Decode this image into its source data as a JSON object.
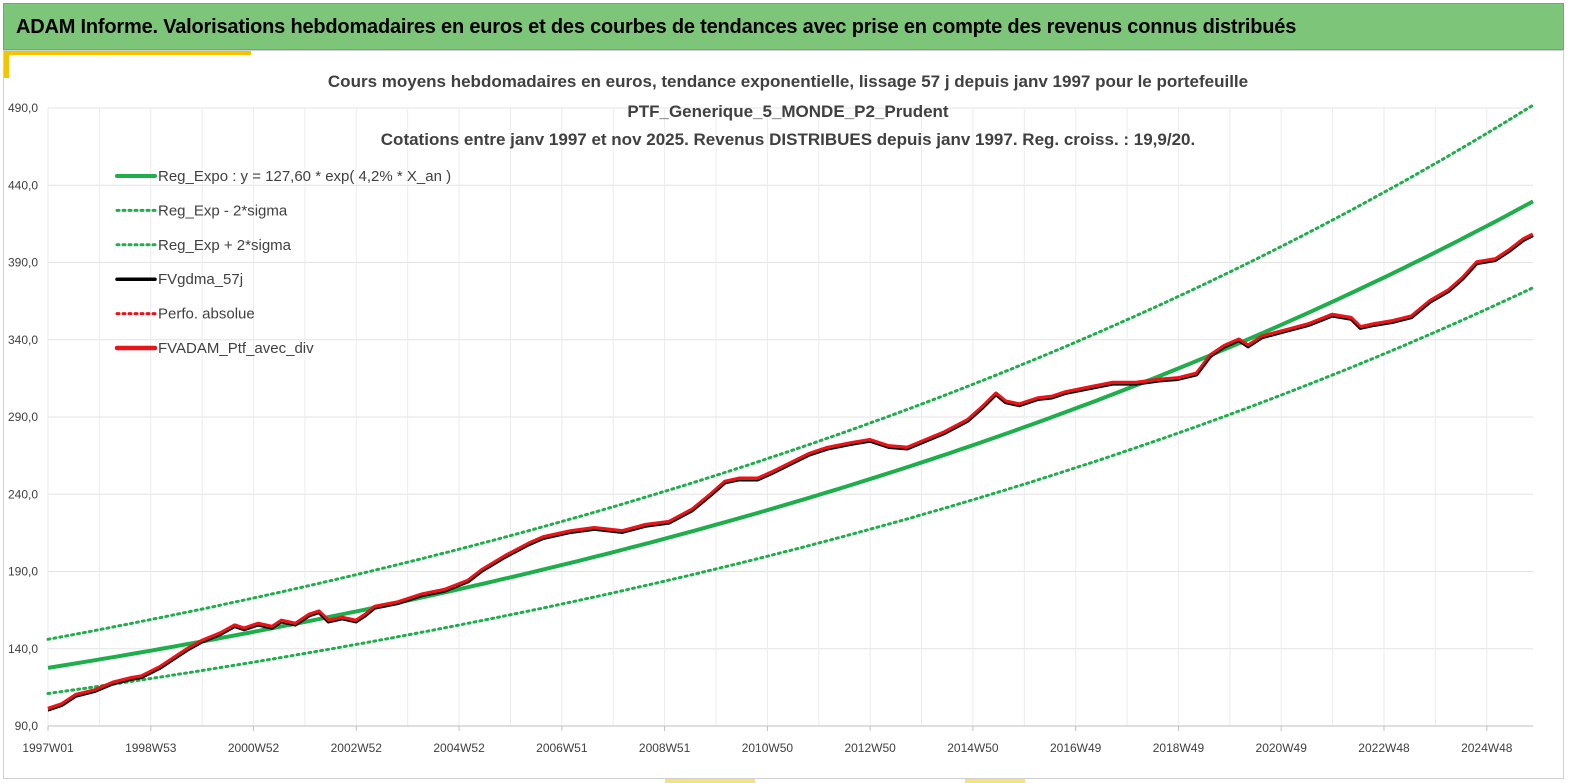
{
  "header": {
    "title": "ADAM Informe. Valorisations hebdomadaires en euros et des courbes de tendances avec prise en compte des revenus connus distribués"
  },
  "colors": {
    "banner": "#7dc579",
    "accent": "#f5c400",
    "reg": "#1fae4c",
    "fv": "#000000",
    "perf": "#e8141a",
    "grid": "#e3e3e3"
  },
  "chart_data": {
    "type": "line",
    "title_lines": [
      "Cours moyens hebdomadaires  en euros, tendance exponentielle, lissage 57 j depuis janv 1997 pour le portefeuille",
      "PTF_Generique_5_MONDE_P2_Prudent",
      "Cotations  entre janv 1997 et nov 2025. Revenus DISTRIBUES depuis janv 1997. Reg. croiss. : 19,9/20."
    ],
    "ylim": [
      90,
      490
    ],
    "y_ticks": [
      "490,0",
      "440,0",
      "390,0",
      "340,0",
      "290,0",
      "240,0",
      "190,0",
      "140,0",
      "90,0"
    ],
    "x_range_years": [
      1997.0,
      2025.9
    ],
    "x_ticks": [
      {
        "label": "1997W01",
        "year": 1997.0
      },
      {
        "label": "1998W53",
        "year": 1999.0
      },
      {
        "label": "2000W52",
        "year": 2001.0
      },
      {
        "label": "2002W52",
        "year": 2003.0
      },
      {
        "label": "2004W52",
        "year": 2005.0
      },
      {
        "label": "2006W51",
        "year": 2007.0
      },
      {
        "label": "2008W51",
        "year": 2009.0
      },
      {
        "label": "2010W50",
        "year": 2011.0
      },
      {
        "label": "2012W50",
        "year": 2013.0
      },
      {
        "label": "2014W50",
        "year": 2015.0
      },
      {
        "label": "2016W49",
        "year": 2017.0
      },
      {
        "label": "2018W49",
        "year": 2019.0
      },
      {
        "label": "2020W49",
        "year": 2021.0
      },
      {
        "label": "2022W48",
        "year": 2023.0
      },
      {
        "label": "2024W48",
        "year": 2025.0
      }
    ],
    "regression": {
      "a": 127.6,
      "rate": 0.042,
      "sigma_mult": [
        0.87,
        1.145
      ]
    },
    "legend": [
      {
        "key": "reg",
        "label": "Reg_Expo : y = 127,60 * exp( 4,2% *  X_an )",
        "style": "solid-green"
      },
      {
        "key": "low",
        "label": "Reg_Exp - 2*sigma",
        "style": "dotted-green"
      },
      {
        "key": "high",
        "label": "Reg_Exp + 2*sigma",
        "style": "dotted-green"
      },
      {
        "key": "fv",
        "label": "FVgdma_57j",
        "style": "solid-black"
      },
      {
        "key": "perf",
        "label": "Perfo. absolue",
        "style": "dotted-red"
      },
      {
        "key": "ptf",
        "label": "FVADAM_Ptf_avec_div",
        "style": "solid-red"
      }
    ],
    "series_anchors": [
      [
        1997.0,
        101
      ],
      [
        1997.3,
        104
      ],
      [
        1997.6,
        110
      ],
      [
        1998.0,
        113
      ],
      [
        1998.4,
        118
      ],
      [
        1998.8,
        121
      ],
      [
        1999.0,
        122
      ],
      [
        1999.4,
        128
      ],
      [
        1999.8,
        136
      ],
      [
        2000.0,
        140
      ],
      [
        2000.3,
        145
      ],
      [
        2000.7,
        150
      ],
      [
        2001.0,
        155
      ],
      [
        2001.2,
        153
      ],
      [
        2001.5,
        156
      ],
      [
        2001.8,
        154
      ],
      [
        2002.0,
        158
      ],
      [
        2002.3,
        156
      ],
      [
        2002.6,
        162
      ],
      [
        2002.8,
        164
      ],
      [
        2003.0,
        158
      ],
      [
        2003.3,
        160
      ],
      [
        2003.6,
        158
      ],
      [
        2003.8,
        162
      ],
      [
        2004.0,
        167
      ],
      [
        2004.5,
        170
      ],
      [
        2005.0,
        175
      ],
      [
        2005.5,
        178
      ],
      [
        2006.0,
        184
      ],
      [
        2006.3,
        191
      ],
      [
        2006.8,
        200
      ],
      [
        2007.3,
        208
      ],
      [
        2007.6,
        212
      ],
      [
        2008.2,
        216
      ],
      [
        2008.7,
        218
      ],
      [
        2009.3,
        216
      ],
      [
        2009.8,
        220
      ],
      [
        2010.3,
        222
      ],
      [
        2010.8,
        230
      ],
      [
        2011.2,
        240
      ],
      [
        2011.5,
        248
      ],
      [
        2011.8,
        250
      ],
      [
        2012.2,
        250
      ],
      [
        2012.5,
        254
      ],
      [
        2012.9,
        260
      ],
      [
        2013.3,
        266
      ],
      [
        2013.7,
        270
      ],
      [
        2014.2,
        273
      ],
      [
        2014.6,
        275
      ],
      [
        2015.0,
        271
      ],
      [
        2015.4,
        270
      ],
      [
        2015.8,
        275
      ],
      [
        2016.2,
        280
      ],
      [
        2016.7,
        288
      ],
      [
        2017.0,
        296
      ],
      [
        2017.3,
        305
      ],
      [
        2017.5,
        300
      ],
      [
        2017.8,
        298
      ],
      [
        2018.2,
        302
      ],
      [
        2018.5,
        303
      ],
      [
        2018.8,
        306
      ],
      [
        2019.3,
        309
      ],
      [
        2019.8,
        312
      ],
      [
        2020.3,
        312
      ],
      [
        2020.8,
        314
      ],
      [
        2021.2,
        315
      ],
      [
        2021.6,
        318
      ],
      [
        2021.9,
        330
      ],
      [
        2022.2,
        336
      ],
      [
        2022.5,
        340
      ],
      [
        2022.7,
        336
      ],
      [
        2023.0,
        342
      ],
      [
        2023.5,
        346
      ],
      [
        2024.0,
        350
      ],
      [
        2024.5,
        356
      ],
      [
        2024.9,
        354
      ],
      [
        2025.1,
        348
      ],
      [
        2025.4,
        350
      ],
      [
        2025.8,
        352
      ],
      [
        2026.2,
        355
      ],
      [
        2026.6,
        365
      ],
      [
        2027.0,
        372
      ],
      [
        2027.3,
        380
      ],
      [
        2027.6,
        390
      ],
      [
        2028.0,
        392
      ],
      [
        2028.3,
        398
      ],
      [
        2028.6,
        405
      ],
      [
        2028.8,
        408
      ]
    ]
  }
}
